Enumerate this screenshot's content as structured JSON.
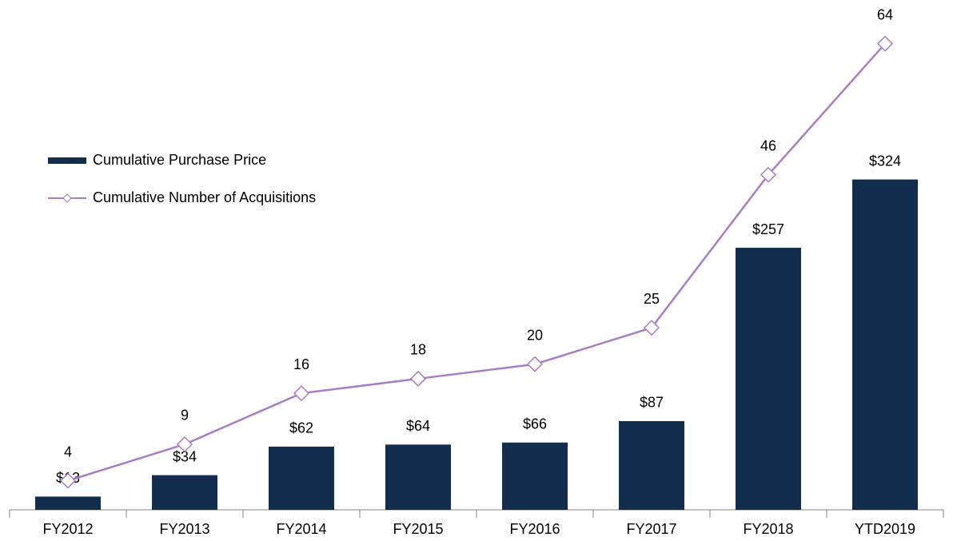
{
  "chart_data": {
    "type": "bar_line",
    "categories": [
      "FY2012",
      "FY2013",
      "FY2014",
      "FY2015",
      "FY2016",
      "FY2017",
      "FY2018",
      "YTD2019"
    ],
    "series": [
      {
        "name": "Cumulative Purchase Price",
        "type": "bar",
        "color": "#132d4e",
        "values": [
          13,
          34,
          62,
          64,
          66,
          87,
          257,
          324
        ],
        "value_labels": [
          "$13",
          "$34",
          "$62",
          "$64",
          "$66",
          "$87",
          "$257",
          "$324"
        ]
      },
      {
        "name": "Cumulative Number of Acquisitions",
        "type": "line",
        "axis": "y2",
        "color": "#a97fc4",
        "values": [
          4,
          9,
          16,
          18,
          20,
          25,
          46,
          64
        ]
      }
    ],
    "ylim": [
      0,
      500
    ],
    "y2lim": [
      0,
      70
    ],
    "legend": "left"
  }
}
